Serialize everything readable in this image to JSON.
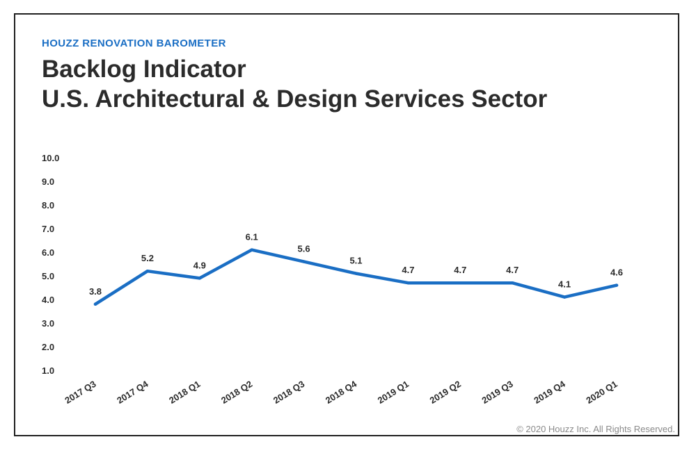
{
  "header": {
    "eyebrow": "HOUZZ RENOVATION BAROMETER",
    "title_line1": "Backlog Indicator",
    "title_line2": "U.S. Architectural & Design Services Sector"
  },
  "footer": {
    "copyright": "© 2020 Houzz Inc. All Rights Reserved."
  },
  "colors": {
    "accent": "#1a6ec4",
    "text": "#2b2b2b",
    "frame": "#1f1f1f"
  },
  "chart_data": {
    "type": "line",
    "title": "Backlog Indicator U.S. Architectural & Design Services Sector",
    "xlabel": "",
    "ylabel": "",
    "categories": [
      "2017 Q3",
      "2017 Q4",
      "2018 Q1",
      "2018 Q2",
      "2018 Q3",
      "2018 Q4",
      "2019 Q1",
      "2019 Q2",
      "2019 Q3",
      "2019 Q4",
      "2020 Q1"
    ],
    "values": [
      3.8,
      5.2,
      4.9,
      6.1,
      5.6,
      5.1,
      4.7,
      4.7,
      4.7,
      4.1,
      4.6
    ],
    "data_labels": [
      "3.8",
      "5.2",
      "4.9",
      "6.1",
      "5.6",
      "5.1",
      "4.7",
      "4.7",
      "4.7",
      "4.1",
      "4.6"
    ],
    "yticks": [
      "10.0",
      "9.0",
      "8.0",
      "7.0",
      "6.0",
      "5.0",
      "4.0",
      "3.0",
      "2.0",
      "1.0"
    ],
    "ylim": [
      1,
      10
    ],
    "grid": false,
    "legend": "none"
  }
}
